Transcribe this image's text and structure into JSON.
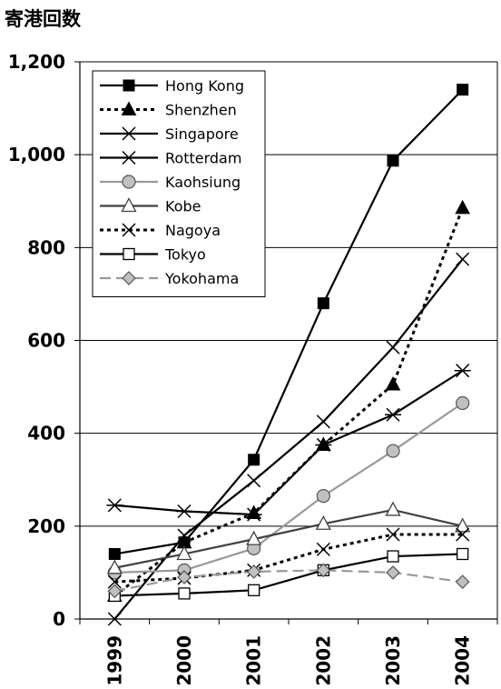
{
  "chart_data": {
    "type": "line",
    "title": "",
    "xlabel": "",
    "ylabel": "寄港回数",
    "categories": [
      "1999",
      "2000",
      "2001",
      "2002",
      "2003",
      "2004"
    ],
    "ylim": [
      0,
      1200
    ],
    "yticks": [
      "0",
      "200",
      "400",
      "600",
      "800",
      "1,000",
      "1,200"
    ],
    "grid": true,
    "legend": "top-left",
    "series": [
      {
        "name": "Hong Kong",
        "color": "#000000",
        "dash": "solid",
        "marker": "square-filled",
        "values": [
          140,
          165,
          343,
          680,
          987,
          1140
        ]
      },
      {
        "name": "Shenzhen",
        "color": "#000000",
        "dash": "dotted",
        "marker": "triangle-filled",
        "values": [
          50,
          165,
          228,
          375,
          505,
          885
        ]
      },
      {
        "name": "Singapore",
        "color": "#000000",
        "dash": "solid",
        "marker": "x",
        "values": [
          0,
          180,
          298,
          425,
          585,
          775
        ]
      },
      {
        "name": "Rotterdam",
        "color": "#000000",
        "dash": "solid",
        "marker": "asterisk",
        "values": [
          245,
          232,
          225,
          375,
          440,
          535
        ]
      },
      {
        "name": "Kaohsiung",
        "color": "#999999",
        "dash": "solid",
        "marker": "circle-gray",
        "values": [
          100,
          105,
          152,
          265,
          362,
          465
        ]
      },
      {
        "name": "Kobe",
        "color": "#404040",
        "dash": "solid",
        "marker": "triangle-open",
        "values": [
          110,
          140,
          172,
          205,
          235,
          200
        ]
      },
      {
        "name": "Nagoya",
        "color": "#000000",
        "dash": "dotted",
        "marker": "x",
        "values": [
          80,
          88,
          105,
          150,
          182,
          182
        ]
      },
      {
        "name": "Tokyo",
        "color": "#000000",
        "dash": "solid",
        "marker": "square-open",
        "values": [
          50,
          55,
          62,
          105,
          135,
          140
        ]
      },
      {
        "name": "Yokohama",
        "color": "#999999",
        "dash": "dashed",
        "marker": "diamond-gray",
        "values": [
          60,
          90,
          102,
          105,
          100,
          80
        ]
      }
    ]
  }
}
